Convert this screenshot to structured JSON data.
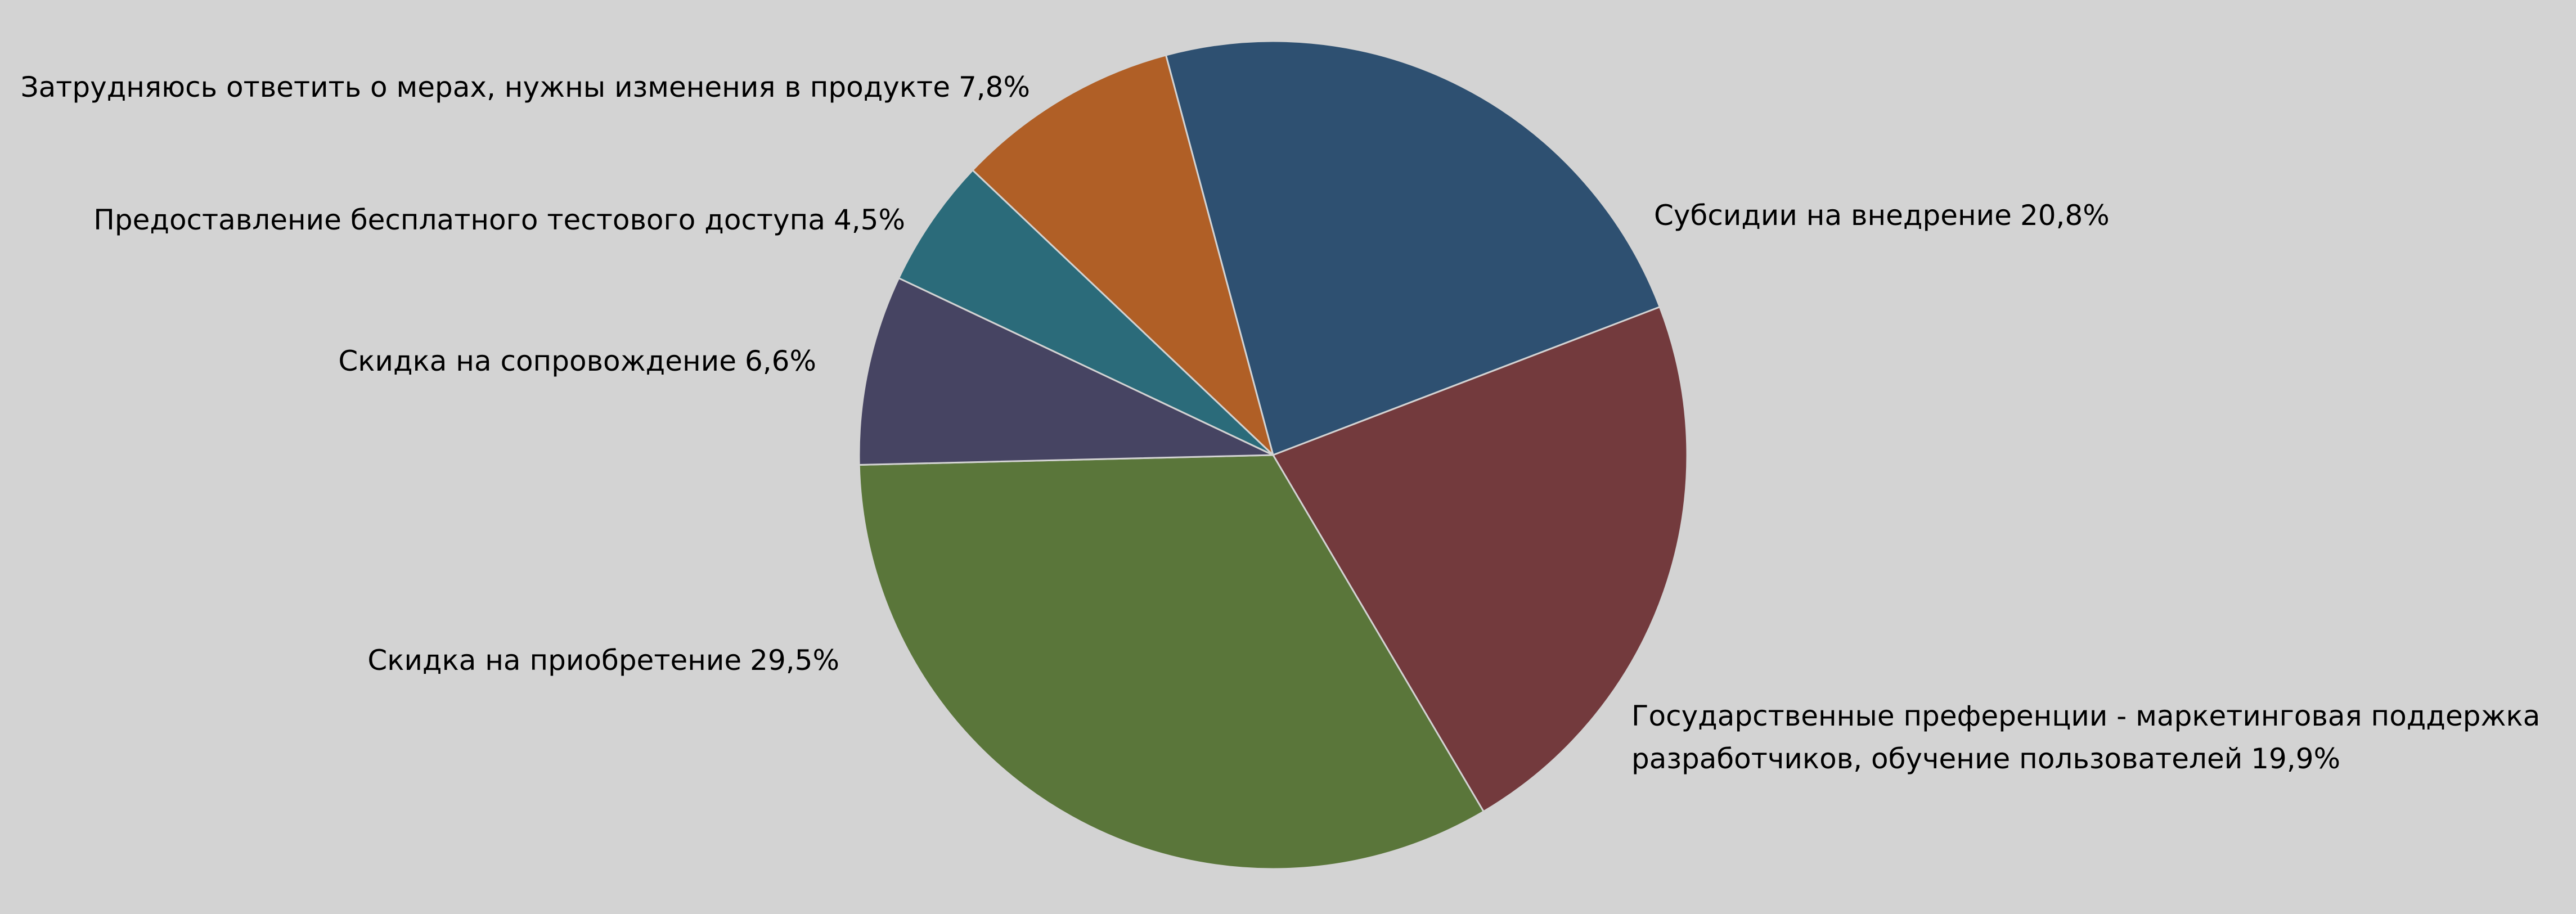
{
  "chart_data": {
    "type": "pie",
    "categories": [
      "Субсидии на внедрение",
      "Государственные преференции - маркетинговая поддержка разработчиков, обучение пользователей",
      "Скидка на приобретение",
      "Скидка на сопровождение",
      "Предоставление бесплатного тестового доступа",
      "Затрудняюсь ответить о мерах, нужны изменения в продукте"
    ],
    "values": [
      20.8,
      19.9,
      29.5,
      6.6,
      4.5,
      7.8
    ],
    "value_labels": [
      "20,8%",
      "19,9%",
      "29,5%",
      "6,6%",
      "4,5%",
      "7,8%"
    ],
    "colors": [
      "#2e5071",
      "#733a3d",
      "#5a763a",
      "#464462",
      "#2b6b7a",
      "#b05f26"
    ]
  }
}
